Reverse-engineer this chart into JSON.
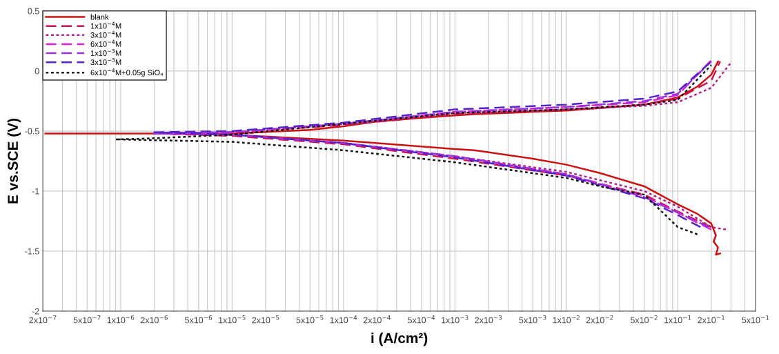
{
  "chart_data": {
    "type": "line",
    "xlabel": "i (A/cm²)",
    "ylabel": "E vs.SCE (V)",
    "log": "x",
    "grid": true,
    "legend": "top left",
    "marker": "none",
    "xlim": [
      2e-07,
      0.5
    ],
    "ylim": [
      -2,
      0.5
    ],
    "yticks": [
      -2,
      -1.5,
      -1,
      -0.5,
      0,
      0.5
    ],
    "xticks": [
      {
        "value": 2e-07,
        "label": "2x10$^{−7}$"
      },
      {
        "value": 3e-07,
        "label": null
      },
      {
        "value": 4e-07,
        "label": null
      },
      {
        "value": 5e-07,
        "label": "5x10$^{−7}$"
      },
      {
        "value": 6e-07,
        "label": null
      },
      {
        "value": 7e-07,
        "label": null
      },
      {
        "value": 8e-07,
        "label": null
      },
      {
        "value": 9e-07,
        "label": null
      },
      {
        "value": 1e-06,
        "label": "1x10$^{−6}$"
      },
      {
        "value": 2e-06,
        "label": "2x10$^{−6}$"
      },
      {
        "value": 3e-06,
        "label": null
      },
      {
        "value": 4e-06,
        "label": null
      },
      {
        "value": 5e-06,
        "label": "5x10$^{−6}$"
      },
      {
        "value": 6e-06,
        "label": null
      },
      {
        "value": 7e-06,
        "label": null
      },
      {
        "value": 8e-06,
        "label": null
      },
      {
        "value": 9e-06,
        "label": null
      },
      {
        "value": 1e-05,
        "label": "1x10$^{−5}$"
      },
      {
        "value": 2e-05,
        "label": "2x10$^{−5}$"
      },
      {
        "value": 3e-05,
        "label": null
      },
      {
        "value": 4e-05,
        "label": null
      },
      {
        "value": 5e-05,
        "label": "5x10$^{−5}$"
      },
      {
        "value": 6e-05,
        "label": null
      },
      {
        "value": 7e-05,
        "label": null
      },
      {
        "value": 8e-05,
        "label": null
      },
      {
        "value": 9e-05,
        "label": null
      },
      {
        "value": 0.0001,
        "label": "1x10$^{−4}$"
      },
      {
        "value": 0.0002,
        "label": "2x10$^{−4}$"
      },
      {
        "value": 0.0003,
        "label": null
      },
      {
        "value": 0.0004,
        "label": null
      },
      {
        "value": 0.0005,
        "label": "5x10$^{−4}$"
      },
      {
        "value": 0.0006,
        "label": null
      },
      {
        "value": 0.0007,
        "label": null
      },
      {
        "value": 0.0008,
        "label": null
      },
      {
        "value": 0.0009,
        "label": null
      },
      {
        "value": 0.001,
        "label": "1x10$^{−3}$"
      },
      {
        "value": 0.002,
        "label": "2x10$^{−3}$"
      },
      {
        "value": 0.003,
        "label": null
      },
      {
        "value": 0.004,
        "label": null
      },
      {
        "value": 0.005,
        "label": "5x10$^{−3}$"
      },
      {
        "value": 0.006,
        "label": null
      },
      {
        "value": 0.007,
        "label": null
      },
      {
        "value": 0.008,
        "label": null
      },
      {
        "value": 0.009,
        "label": null
      },
      {
        "value": 0.01,
        "label": "1x10$^{−2}$"
      },
      {
        "value": 0.02,
        "label": "2x10$^{−2}$"
      },
      {
        "value": 0.03,
        "label": null
      },
      {
        "value": 0.04,
        "label": null
      },
      {
        "value": 0.05,
        "label": "5x10$^{−2}$"
      },
      {
        "value": 0.06,
        "label": null
      },
      {
        "value": 0.07,
        "label": null
      },
      {
        "value": 0.08,
        "label": null
      },
      {
        "value": 0.09,
        "label": null
      },
      {
        "value": 0.1,
        "label": "1x10$^{−1}$"
      },
      {
        "value": 0.2,
        "label": "2x10$^{−1}$"
      },
      {
        "value": 0.3,
        "label": null
      },
      {
        "value": 0.4,
        "label": null
      },
      {
        "value": 0.5,
        "label": "5x10$^{−1}$"
      }
    ],
    "series": [
      {
        "name": "blank",
        "color": "#cc1111",
        "line_style": "solid",
        "x": [
          0.24,
          0.22,
          0.23,
          0.21,
          0.22,
          0.2,
          0.15,
          0.1,
          0.05,
          0.02,
          0.01,
          0.005,
          0.0015,
          0.001,
          0.0001,
          1e-05,
          2e-06,
          2.1e-07,
          2e-06,
          1e-05,
          5e-05,
          0.0001,
          0.0002,
          0.0005,
          0.001,
          0.0015,
          0.005,
          0.01,
          0.05,
          0.1,
          0.15,
          0.2,
          0.23
        ],
        "values": [
          -1.52,
          -1.53,
          -1.47,
          -1.42,
          -1.37,
          -1.27,
          -1.19,
          -1.11,
          -0.96,
          -0.85,
          -0.78,
          -0.73,
          -0.66,
          -0.65,
          -0.58,
          -0.53,
          -0.52,
          -0.52,
          -0.52,
          -0.52,
          -0.49,
          -0.46,
          -0.42,
          -0.39,
          -0.37,
          -0.36,
          -0.34,
          -0.33,
          -0.28,
          -0.22,
          -0.13,
          -0.03,
          0.08
        ]
      },
      {
        "name": "1x10$^{−4}$M",
        "color": "#cc1550",
        "line_style": "dashed",
        "x": [
          0.2,
          0.1,
          0.05,
          0.01,
          0.001,
          0.0001,
          1e-05,
          2e-06,
          1e-05,
          0.0001,
          0.001,
          0.01,
          0.05,
          0.1,
          0.2,
          0.24
        ],
        "values": [
          -1.3,
          -1.17,
          -1.03,
          -0.87,
          -0.73,
          -0.61,
          -0.54,
          -0.52,
          -0.51,
          -0.45,
          -0.36,
          -0.32,
          -0.28,
          -0.23,
          -0.08,
          0.08
        ]
      },
      {
        "name": "3x10$^{−4}$M",
        "color": "#b0208a",
        "line_style": "dotted",
        "x": [
          0.27,
          0.2,
          0.1,
          0.05,
          0.01,
          0.001,
          0.0001,
          1e-05,
          2e-06,
          1e-05,
          0.0001,
          0.001,
          0.01,
          0.05,
          0.1,
          0.2,
          0.3
        ],
        "values": [
          -1.32,
          -1.3,
          -1.13,
          -1.0,
          -0.84,
          -0.71,
          -0.6,
          -0.53,
          -0.52,
          -0.51,
          -0.44,
          -0.35,
          -0.32,
          -0.29,
          -0.26,
          -0.14,
          0.07
        ]
      },
      {
        "name": "6x10$^{−4}$M",
        "color": "#e020d0",
        "line_style": "dashed",
        "x": [
          0.2,
          0.1,
          0.05,
          0.01,
          0.001,
          0.0001,
          1e-05,
          2e-06,
          1e-05,
          0.0001,
          0.001,
          0.01,
          0.05,
          0.1,
          0.2
        ],
        "values": [
          -1.32,
          -1.18,
          -1.04,
          -0.86,
          -0.71,
          -0.6,
          -0.53,
          -0.52,
          -0.51,
          -0.44,
          -0.34,
          -0.3,
          -0.26,
          -0.2,
          0.09
        ]
      },
      {
        "name": "1x10$^{−3}$M",
        "color": "#9933dd",
        "line_style": "dashed",
        "x": [
          0.19,
          0.1,
          0.05,
          0.01,
          0.001,
          0.0001,
          1e-05,
          2e-06,
          1e-05,
          0.0001,
          0.001,
          0.01,
          0.05,
          0.1,
          0.2
        ],
        "values": [
          -1.3,
          -1.18,
          -1.05,
          -0.86,
          -0.71,
          -0.6,
          -0.53,
          -0.52,
          -0.51,
          -0.44,
          -0.34,
          -0.3,
          -0.25,
          -0.19,
          0.08
        ]
      },
      {
        "name": "3x10$^{−3}$M",
        "color": "#5522cc",
        "line_style": "dashed",
        "x": [
          0.16,
          0.1,
          0.05,
          0.01,
          0.001,
          0.0001,
          1e-05,
          2e-06,
          1e-05,
          0.0001,
          0.001,
          0.01,
          0.05,
          0.1,
          0.2
        ],
        "values": [
          -1.3,
          -1.2,
          -1.06,
          -0.87,
          -0.72,
          -0.6,
          -0.53,
          -0.51,
          -0.5,
          -0.43,
          -0.32,
          -0.28,
          -0.23,
          -0.17,
          0.08
        ]
      },
      {
        "name": "6x10$^{−4}$M+0.05g SiO₄",
        "color": "#111111",
        "line_style": "dotted",
        "x": [
          0.15,
          0.1,
          0.05,
          0.02,
          0.01,
          0.001,
          0.0001,
          1e-05,
          1e-06,
          9e-07,
          2e-06,
          1e-05,
          0.0001,
          0.001,
          0.01,
          0.05,
          0.1,
          0.2
        ],
        "values": [
          -1.36,
          -1.3,
          -1.03,
          -0.96,
          -0.89,
          -0.76,
          -0.66,
          -0.59,
          -0.57,
          -0.57,
          -0.56,
          -0.53,
          -0.44,
          -0.35,
          -0.32,
          -0.28,
          -0.24,
          0.05
        ]
      }
    ]
  }
}
